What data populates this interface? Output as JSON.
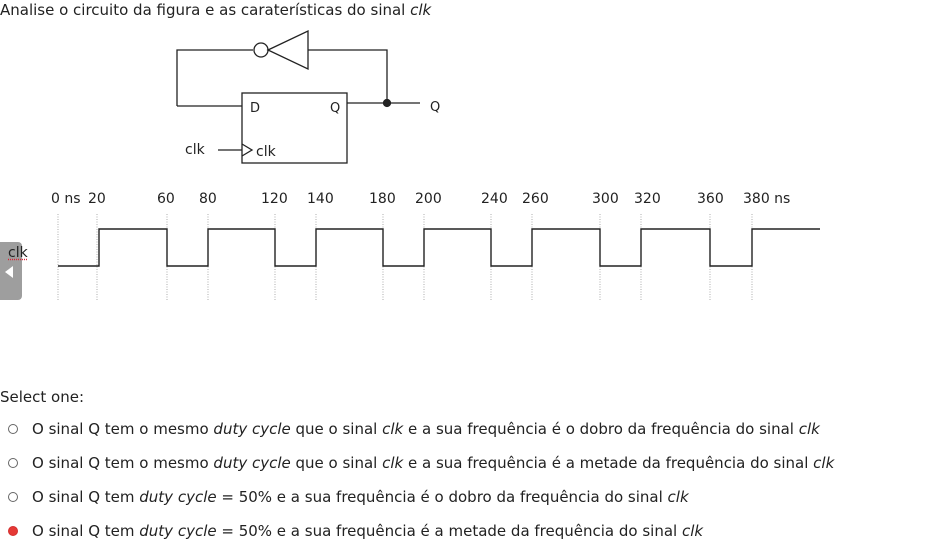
{
  "question": {
    "text": "Analise o circuito da figura e as caraterísticas do sinal ",
    "emph": "clk"
  },
  "circuit": {
    "d_label": "D",
    "q_label": "Q",
    "clk_in_label": "clk",
    "clk_port_label": "clk",
    "output_label": "Q"
  },
  "timing": {
    "time_labels": [
      "0 ns",
      "20",
      "60",
      "80",
      "120",
      "140",
      "180",
      "200",
      "240",
      "260",
      "300",
      "320",
      "360",
      "380 ns"
    ],
    "signal_label": "clk"
  },
  "select_one": "Select one:",
  "options": [
    {
      "parts": [
        "O sinal Q tem o mesmo ",
        "duty cycle",
        " que o sinal ",
        "clk",
        " e a sua frequência é o dobro da frequência do sinal ",
        "clk"
      ],
      "checked": false
    },
    {
      "parts": [
        "O sinal Q tem o mesmo ",
        "duty cycle",
        " que o sinal ",
        "clk",
        " e a sua frequência é a metade da frequência do sinal ",
        "clk"
      ],
      "checked": false
    },
    {
      "parts": [
        "O sinal Q tem ",
        "duty cycle",
        " = 50% e a sua frequência é o dobro da frequência do sinal ",
        "clk"
      ],
      "checked": false
    },
    {
      "parts": [
        "O sinal Q tem ",
        "duty cycle",
        " = 50% e a sua frequência é a metade da frequência do sinal ",
        "clk"
      ],
      "checked": true
    }
  ],
  "colors": {
    "radio_checked": "#e53935",
    "line": "#222222",
    "grid": "#9a9a9a"
  }
}
